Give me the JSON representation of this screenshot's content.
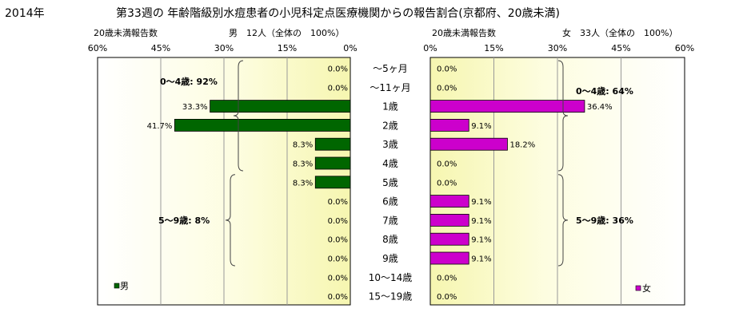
{
  "header": {
    "year": "2014年",
    "title": "第33週の  年齢階級別水痘患者の小児科定点医療機関からの報告割合(京都府、20歳未満)"
  },
  "chart_data": {
    "type": "bar",
    "orientation": "horizontal-butterfly",
    "categories": [
      "～5ヶ月",
      "～11ヶ月",
      "1歳",
      "2歳",
      "3歳",
      "4歳",
      "5歳",
      "6歳",
      "7歳",
      "8歳",
      "9歳",
      "10～14歳",
      "15～19歳"
    ],
    "left_panel": {
      "subtitle_left": "20歳未満報告数",
      "subtitle_right": "男　12人（全体の　100%）",
      "axis_ticks": [
        "60%",
        "45%",
        "30%",
        "15%",
        "0%"
      ],
      "xlim": [
        0,
        60
      ],
      "series": [
        {
          "name": "男",
          "color": "#006600",
          "values": [
            0,
            0,
            33.3,
            41.7,
            8.3,
            8.3,
            8.3,
            0,
            0,
            0,
            0,
            0,
            0
          ],
          "labels": [
            "0.0%",
            "0.0%",
            "33.3%",
            "41.7%",
            "8.3%",
            "8.3%",
            "8.3%",
            "0.0%",
            "0.0%",
            "0.0%",
            "0.0%",
            "0.0%",
            "0.0%"
          ]
        }
      ],
      "legend": "男",
      "group_labels": [
        {
          "text": "0～4歳: 92%",
          "from": 0,
          "to": 5
        },
        {
          "text": "5～9歳: 8%",
          "from": 6,
          "to": 10
        }
      ]
    },
    "right_panel": {
      "subtitle_left": "20歳未満報告数",
      "subtitle_right": "女　33人（全体の　100%）",
      "axis_ticks": [
        "0%",
        "15%",
        "30%",
        "45%",
        "60%"
      ],
      "xlim": [
        0,
        60
      ],
      "series": [
        {
          "name": "女",
          "color": "#cc00cc",
          "values": [
            0,
            0,
            36.4,
            9.1,
            18.2,
            0,
            0,
            9.1,
            9.1,
            9.1,
            9.1,
            0,
            0
          ],
          "labels": [
            "0.0%",
            "0.0%",
            "36.4%",
            "9.1%",
            "18.2%",
            "0.0%",
            "0.0%",
            "9.1%",
            "9.1%",
            "9.1%",
            "9.1%",
            "0.0%",
            "0.0%"
          ]
        }
      ],
      "legend": "女",
      "group_labels": [
        {
          "text": "0～4歳: 64%",
          "from": 0,
          "to": 5
        },
        {
          "text": "5～9歳: 36%",
          "from": 6,
          "to": 10
        }
      ]
    }
  }
}
